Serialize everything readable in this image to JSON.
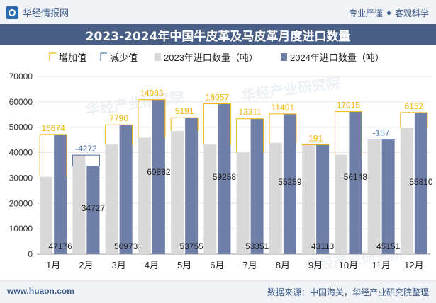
{
  "header": {
    "brand": "华经情报网",
    "slogan_left": "专业严谨",
    "slogan_right": "客观科学"
  },
  "watermark": "华经产业研究院",
  "footer": {
    "url": "www.huaon.com",
    "source": "数据来源：中国海关，华经产业研究院整理"
  },
  "colors": {
    "bar_2023": "#d9d9d9",
    "bar_2024": "#6f7fa8",
    "increase": "#f0b400",
    "decrease": "#4a6fa5",
    "title_bg": "#4a5f86"
  },
  "chart_data": {
    "type": "bar",
    "title": "2023-2024年中国牛皮革及马皮革月度进口数量",
    "categories": [
      "1月",
      "2月",
      "3月",
      "4月",
      "5月",
      "6月",
      "7月",
      "8月",
      "9月",
      "10月",
      "11月",
      "12月"
    ],
    "series": [
      {
        "name": "2023年进口数量（吨）",
        "values": [
          30502,
          38999,
          43183,
          45899,
          48564,
          43201,
          40040,
          43858,
          42922,
          39133,
          45308,
          49658
        ]
      },
      {
        "name": "2024年进口数量（吨）",
        "values": [
          47176,
          34727,
          50973,
          60882,
          53755,
          59258,
          53351,
          55259,
          43113,
          56148,
          45151,
          55810
        ]
      }
    ],
    "change": {
      "legend_increase": "增加值",
      "legend_decrease": "减少值",
      "values": [
        16674,
        -4272,
        7790,
        14983,
        5191,
        16057,
        13311,
        11401,
        191,
        17015,
        -157,
        6152
      ]
    },
    "ylim": [
      0,
      70000
    ],
    "yticks": [
      0,
      10000,
      20000,
      30000,
      40000,
      50000,
      60000,
      70000
    ],
    "grid": true,
    "legend_position": "top"
  }
}
